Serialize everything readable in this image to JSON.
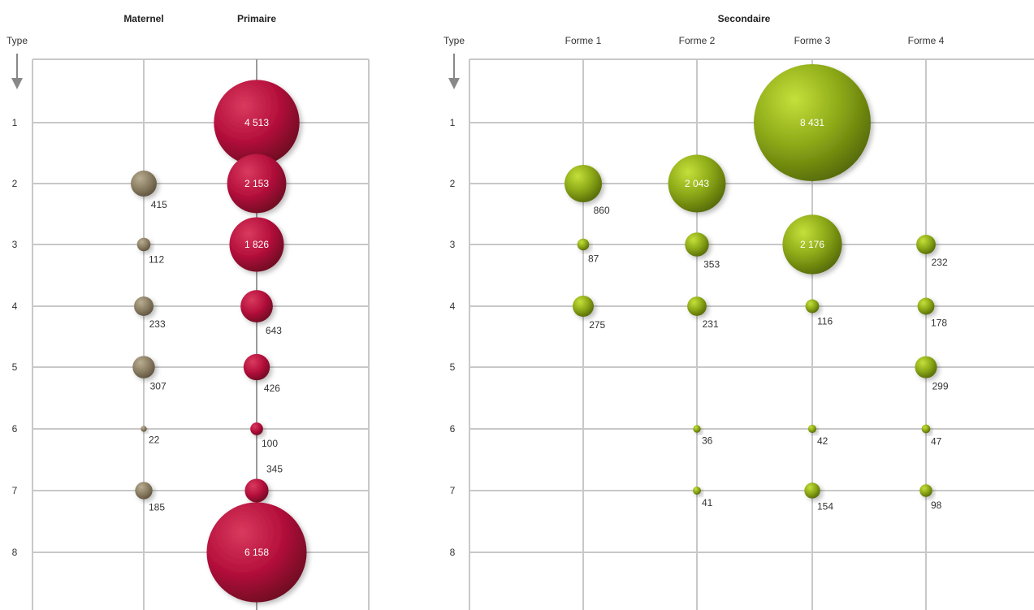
{
  "chart_data": [
    {
      "type": "bubble",
      "group_label": "",
      "yaxis_label": "Type",
      "categories": [
        "Maternel",
        "Primaire"
      ],
      "types": [
        "1",
        "2",
        "3",
        "4",
        "5",
        "6",
        "7",
        "8"
      ],
      "color": "#a0133a",
      "series": [
        {
          "name": "Maternel",
          "color": "#8a7d62",
          "values": [
            null,
            415,
            112,
            233,
            307,
            22,
            185,
            null
          ]
        },
        {
          "name": "Primaire",
          "color": "#b0103a",
          "values": [
            4513,
            2153,
            1826,
            643,
            426,
            100,
            345,
            6158
          ]
        }
      ],
      "value_labels": {
        "Maternel": [
          null,
          "415",
          "112",
          "233",
          "307",
          "22",
          "185",
          null
        ],
        "Primaire": [
          "4 513",
          "2 153",
          "1 826",
          "643",
          "426",
          "100",
          "345",
          "6 158"
        ]
      }
    },
    {
      "type": "bubble",
      "group_label": "Secondaire",
      "yaxis_label": "Type",
      "categories": [
        "Forme 1",
        "Forme 2",
        "Forme 3",
        "Forme 4"
      ],
      "types": [
        "1",
        "2",
        "3",
        "4",
        "5",
        "6",
        "7",
        "8"
      ],
      "color": "#8aa616",
      "series": [
        {
          "name": "Forme 1",
          "values": [
            null,
            860,
            87,
            275,
            null,
            null,
            null,
            null
          ]
        },
        {
          "name": "Forme 2",
          "values": [
            null,
            2043,
            353,
            231,
            null,
            36,
            41,
            null
          ]
        },
        {
          "name": "Forme 3",
          "values": [
            8431,
            null,
            2176,
            116,
            null,
            42,
            154,
            null
          ]
        },
        {
          "name": "Forme 4",
          "values": [
            null,
            null,
            232,
            178,
            299,
            47,
            98,
            null
          ]
        }
      ],
      "value_labels": {
        "Forme 1": [
          null,
          "860",
          "87",
          "275",
          null,
          null,
          null,
          null
        ],
        "Forme 2": [
          null,
          "2 043",
          "353",
          "231",
          null,
          "36",
          "41",
          null
        ],
        "Forme 3": [
          "8 431",
          null,
          "2 176",
          "116",
          null,
          "42",
          "154",
          null
        ],
        "Forme 4": [
          null,
          null,
          "232",
          "178",
          "299",
          "47",
          "98",
          null
        ]
      }
    }
  ]
}
